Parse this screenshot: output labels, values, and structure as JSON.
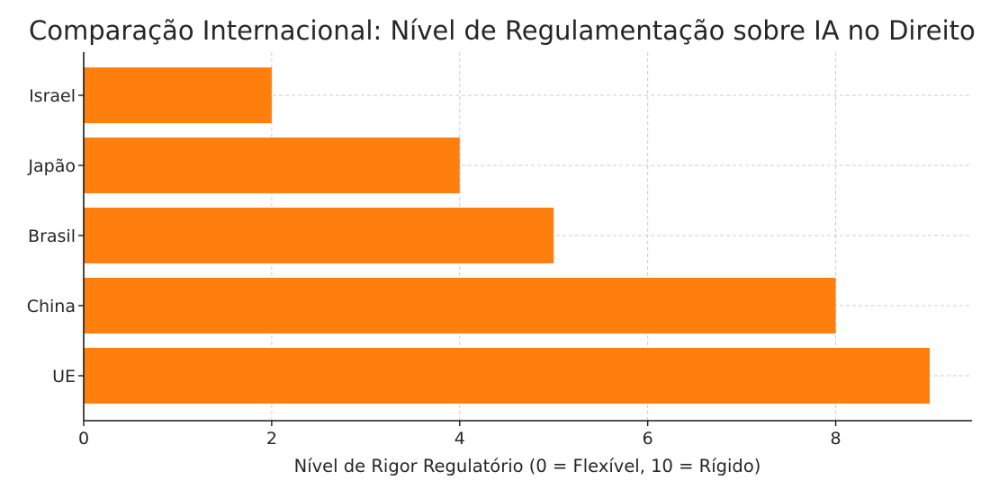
{
  "chart_data": {
    "type": "bar",
    "orientation": "horizontal",
    "title": "Comparação Internacional: Nível de Regulamentação sobre IA no Direito",
    "xlabel": "Nível de Rigor Regulatório (0 = Flexível, 10 = Rígido)",
    "ylabel": "",
    "categories": [
      "UE",
      "China",
      "Brasil",
      "Japão",
      "Israel"
    ],
    "values": [
      9,
      8,
      5,
      4,
      2
    ],
    "xlim": [
      0,
      9.45
    ],
    "xticks": [
      0,
      2,
      4,
      6,
      8
    ],
    "grid": true,
    "bar_color": "#ff7f0e"
  }
}
